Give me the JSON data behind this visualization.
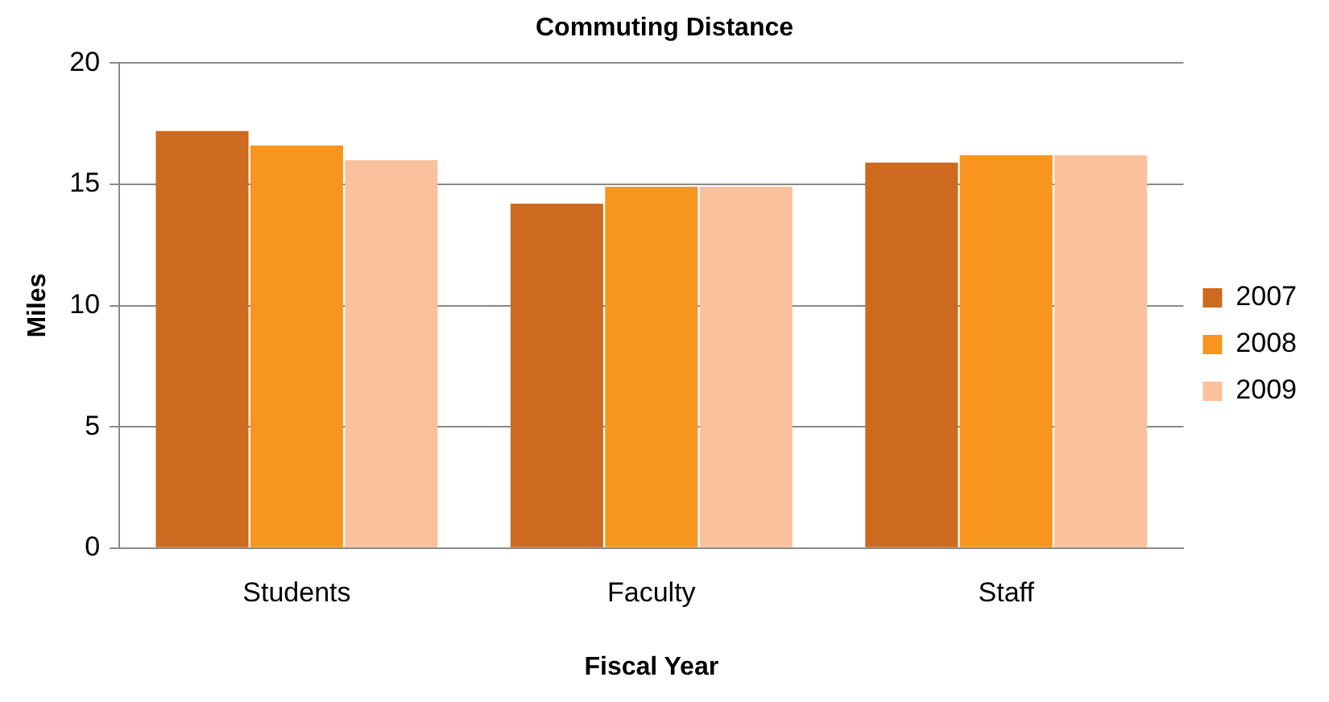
{
  "chart_data": {
    "type": "bar",
    "title": "Commuting Distance",
    "xlabel": "Fiscal Year",
    "ylabel": "Miles",
    "categories": [
      "Students",
      "Faculty",
      "Staff"
    ],
    "series": [
      {
        "name": "2007",
        "color": "#cd6a1f",
        "values": [
          17.2,
          14.2,
          15.9
        ]
      },
      {
        "name": "2008",
        "color": "#f7951e",
        "values": [
          16.6,
          14.9,
          16.2
        ]
      },
      {
        "name": "2009",
        "color": "#f9c29c",
        "values": [
          16.0,
          14.9,
          16.2
        ]
      }
    ],
    "ylim": [
      0,
      20
    ],
    "yticks": [
      0,
      5,
      10,
      15,
      20
    ],
    "grid": "y",
    "legend": "right"
  }
}
